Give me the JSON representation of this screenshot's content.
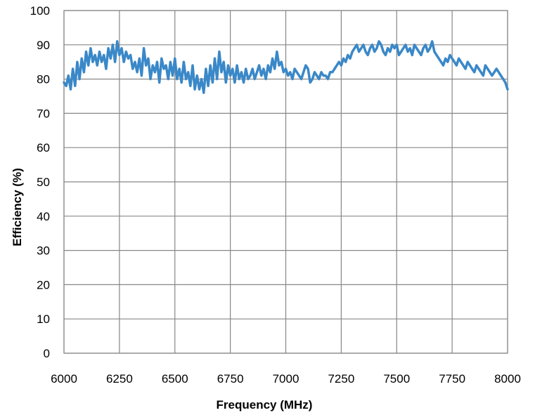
{
  "chart_data": {
    "type": "line",
    "xlabel": "Frequency (MHz)",
    "ylabel": "Efficiency (%)",
    "xlim": [
      6000,
      8000
    ],
    "ylim": [
      0,
      100
    ],
    "x_ticks": [
      6000,
      6250,
      6500,
      6750,
      7000,
      7250,
      7500,
      7750,
      8000
    ],
    "y_ticks": [
      0,
      10,
      20,
      30,
      40,
      50,
      60,
      70,
      80,
      90,
      100
    ],
    "grid": true,
    "line_color": "#3a88c8",
    "series": [
      {
        "x": [
          6000,
          6010,
          6020,
          6030,
          6040,
          6050,
          6060,
          6070,
          6080,
          6090,
          6100,
          6110,
          6120,
          6130,
          6140,
          6150,
          6160,
          6170,
          6180,
          6190,
          6200,
          6210,
          6220,
          6230,
          6240,
          6250,
          6260,
          6270,
          6280,
          6290,
          6300,
          6310,
          6320,
          6330,
          6340,
          6350,
          6360,
          6370,
          6380,
          6390,
          6400,
          6410,
          6420,
          6430,
          6440,
          6450,
          6460,
          6470,
          6480,
          6490,
          6500,
          6510,
          6520,
          6530,
          6540,
          6550,
          6560,
          6570,
          6580,
          6590,
          6600,
          6610,
          6620,
          6630,
          6640,
          6650,
          6660,
          6670,
          6680,
          6690,
          6700,
          6710,
          6720,
          6730,
          6740,
          6750,
          6760,
          6770,
          6780,
          6790,
          6800,
          6810,
          6820,
          6830,
          6840,
          6850,
          6860,
          6870,
          6880,
          6890,
          6900,
          6910,
          6920,
          6930,
          6940,
          6950,
          6960,
          6970,
          6980,
          6990,
          7000,
          7010,
          7020,
          7030,
          7040,
          7050,
          7060,
          7070,
          7080,
          7090,
          7100,
          7110,
          7120,
          7130,
          7140,
          7150,
          7160,
          7170,
          7180,
          7190,
          7200,
          7210,
          7220,
          7230,
          7240,
          7250,
          7260,
          7270,
          7280,
          7290,
          7300,
          7310,
          7320,
          7330,
          7340,
          7350,
          7360,
          7370,
          7380,
          7390,
          7400,
          7410,
          7420,
          7430,
          7440,
          7450,
          7460,
          7470,
          7480,
          7490,
          7500,
          7510,
          7520,
          7530,
          7540,
          7550,
          7560,
          7570,
          7580,
          7590,
          7600,
          7610,
          7620,
          7630,
          7640,
          7650,
          7660,
          7670,
          7680,
          7690,
          7700,
          7710,
          7720,
          7730,
          7740,
          7750,
          7760,
          7770,
          7780,
          7790,
          7800,
          7810,
          7820,
          7830,
          7840,
          7850,
          7860,
          7870,
          7880,
          7890,
          7900,
          7910,
          7920,
          7930,
          7940,
          7950,
          7960,
          7970,
          7980,
          7990,
          8000
        ],
        "values": [
          79,
          78,
          81,
          77,
          83,
          78,
          85,
          80,
          86,
          82,
          88,
          84,
          89,
          85,
          87,
          84,
          88,
          85,
          87,
          83,
          89,
          86,
          90,
          85,
          91,
          87,
          89,
          85,
          88,
          86,
          87,
          83,
          85,
          82,
          86,
          81,
          89,
          84,
          86,
          80,
          84,
          82,
          85,
          79,
          86,
          83,
          84,
          80,
          85,
          81,
          86,
          80,
          83,
          79,
          85,
          80,
          82,
          78,
          84,
          77,
          81,
          77,
          80,
          76,
          83,
          78,
          84,
          79,
          86,
          80,
          88,
          82,
          85,
          79,
          84,
          81,
          83,
          79,
          84,
          80,
          82,
          79,
          83,
          80,
          81,
          83,
          80,
          82,
          84,
          81,
          83,
          80,
          84,
          82,
          86,
          83,
          88,
          84,
          85,
          82,
          83,
          81,
          82,
          80,
          83,
          82,
          81,
          80,
          82,
          84,
          83,
          79,
          80,
          82,
          81,
          80,
          82,
          81,
          81,
          80,
          82,
          82,
          83,
          84,
          85,
          84,
          86,
          85,
          87,
          86,
          88,
          89,
          90,
          88,
          89,
          90,
          88,
          87,
          89,
          90,
          88,
          89,
          91,
          90,
          88,
          87,
          89,
          88,
          90,
          89,
          90,
          87,
          88,
          89,
          90,
          88,
          89,
          87,
          90,
          89,
          88,
          87,
          89,
          90,
          88,
          89,
          91,
          88,
          87,
          86,
          85,
          84,
          86,
          85,
          87,
          86,
          85,
          84,
          86,
          85,
          84,
          83,
          85,
          84,
          83,
          82,
          84,
          83,
          82,
          81,
          84,
          83,
          82,
          81,
          82,
          83,
          82,
          81,
          80,
          79,
          77
        ]
      }
    ]
  }
}
